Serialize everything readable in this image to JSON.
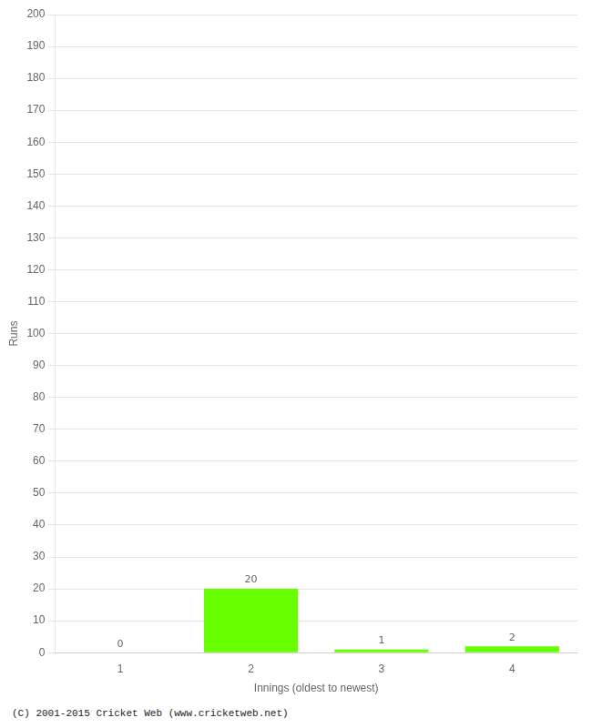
{
  "chart_data": {
    "type": "bar",
    "xlabel": "Innings (oldest to newest)",
    "ylabel": "Runs",
    "categories": [
      1,
      2,
      3,
      4
    ],
    "values": [
      0,
      20,
      1,
      2
    ],
    "color": "#66ff00",
    "ylim": [
      0,
      200
    ],
    "yticks": [
      0,
      10,
      20,
      30,
      40,
      50,
      60,
      70,
      80,
      90,
      100,
      110,
      120,
      130,
      140,
      150,
      160,
      170,
      180,
      190,
      200
    ],
    "grid": true,
    "data_labels": true,
    "annotation": "(C) 2001-2015 Cricket Web (www.cricketweb.net)"
  }
}
